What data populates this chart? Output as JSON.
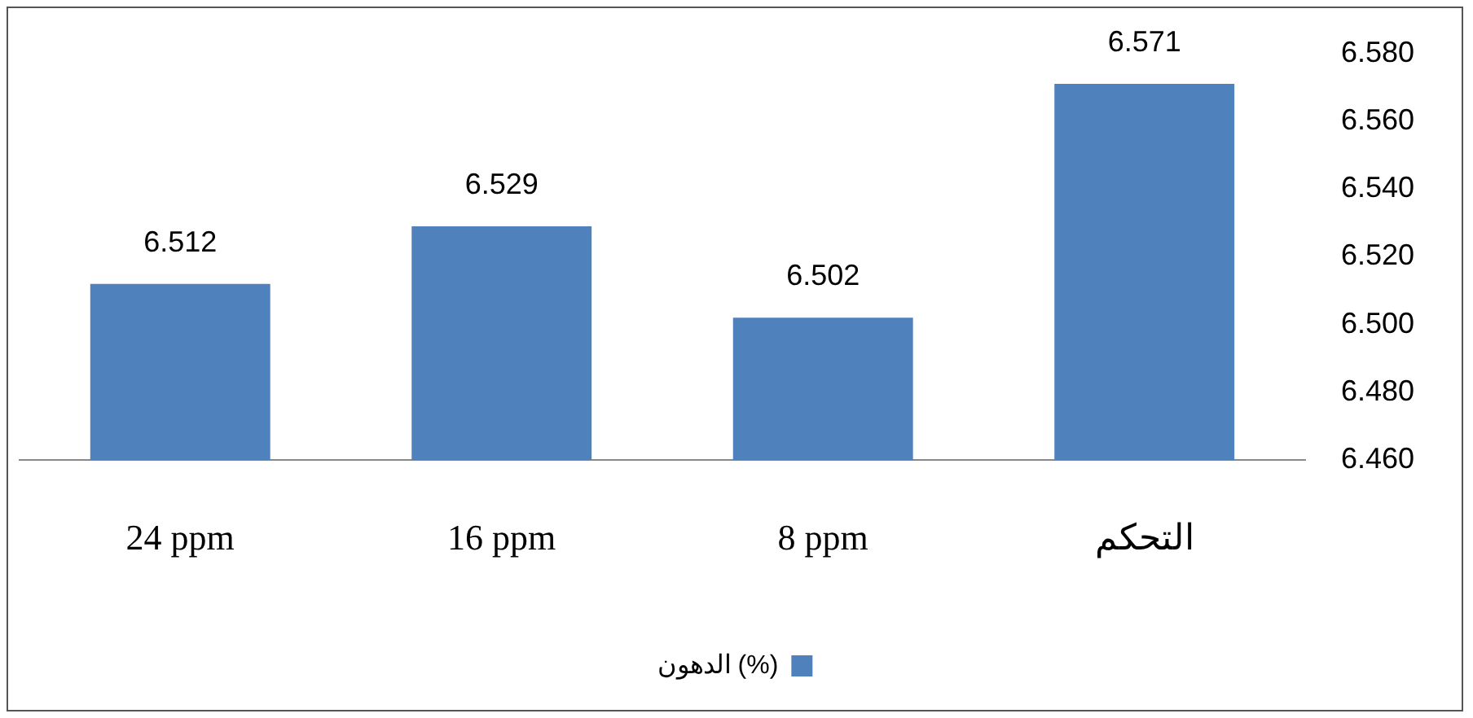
{
  "chart_data": {
    "type": "bar",
    "categories": [
      "24 ppm",
      "16 ppm",
      "8 ppm",
      "التحكم"
    ],
    "series": [
      {
        "name": "الدهون (%)",
        "color": "#4f81bd",
        "values": [
          6.512,
          6.529,
          6.502,
          6.571
        ]
      }
    ],
    "ylim": [
      6.46,
      6.58
    ],
    "yticks": [
      {
        "value": 6.46,
        "label": "6.460"
      },
      {
        "value": 6.48,
        "label": "6.480"
      },
      {
        "value": 6.5,
        "label": "6.500"
      },
      {
        "value": 6.52,
        "label": "6.520"
      },
      {
        "value": 6.54,
        "label": "6.540"
      },
      {
        "value": 6.56,
        "label": "6.560"
      },
      {
        "value": 6.58,
        "label": "6.580"
      }
    ],
    "grid": false,
    "legend": "bottom",
    "data_labels": true
  }
}
